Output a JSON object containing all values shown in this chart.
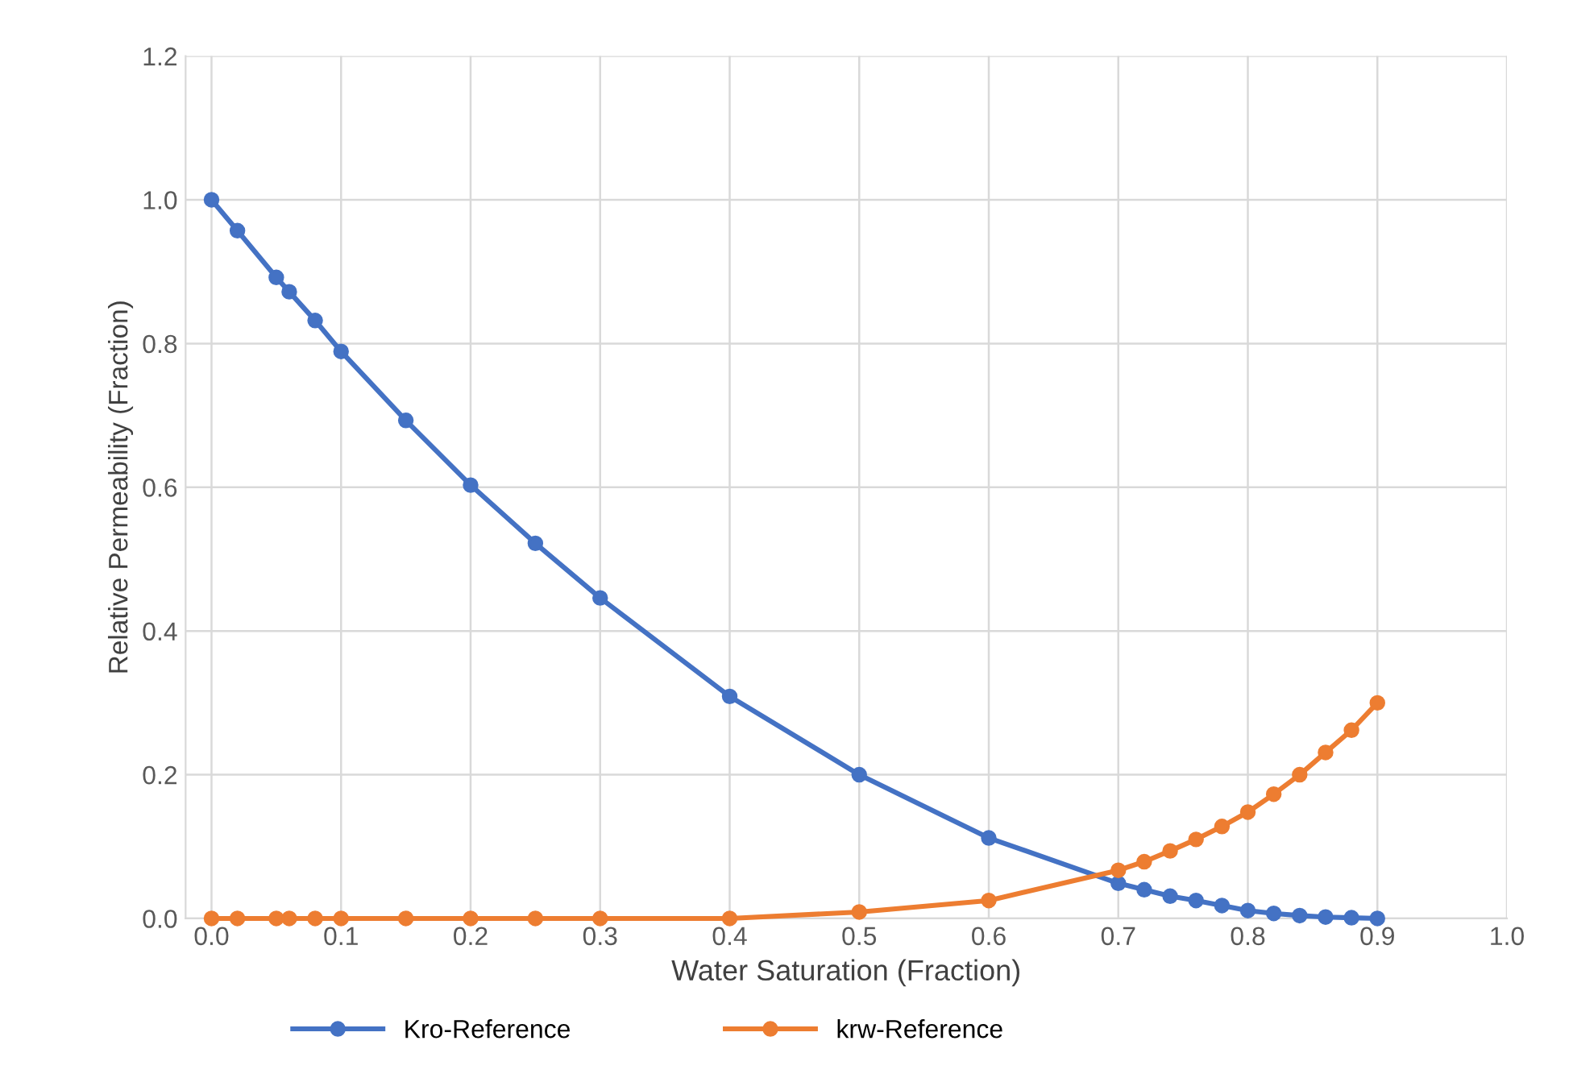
{
  "chart_data": {
    "type": "line",
    "xlabel": "Water Saturation (Fraction)",
    "ylabel": "Relative Permeability (Fraction)",
    "x": [
      0,
      0.02,
      0.05,
      0.06,
      0.08,
      0.1,
      0.15,
      0.2,
      0.25,
      0.3,
      0.4,
      0.5,
      0.6,
      0.7,
      0.72,
      0.74,
      0.76,
      0.78,
      0.8,
      0.82,
      0.84,
      0.86,
      0.88,
      0.9
    ],
    "series": [
      {
        "name": "Kro-Reference",
        "color": "#4472c4",
        "values": [
          1.0,
          0.957,
          0.892,
          0.872,
          0.832,
          0.789,
          0.693,
          0.603,
          0.522,
          0.446,
          0.309,
          0.2,
          0.112,
          0.049,
          0.04,
          0.031,
          0.025,
          0.018,
          0.011,
          0.007,
          0.004,
          0.002,
          0.001,
          0.0
        ]
      },
      {
        "name": "krw-Reference",
        "color": "#ed7d31",
        "values": [
          0,
          0,
          0,
          0,
          0,
          0,
          0,
          0,
          0,
          0,
          0,
          0.009,
          0.025,
          0.067,
          0.079,
          0.094,
          0.11,
          0.128,
          0.148,
          0.173,
          0.2,
          0.231,
          0.262,
          0.3
        ]
      }
    ],
    "xlim": [
      -0.02,
      1.0
    ],
    "xticks": [
      {
        "value": 0,
        "label": "0.0"
      },
      0.1,
      0.2,
      0.3,
      0.4,
      0.5,
      0.6,
      0.7,
      0.8,
      0.9,
      {
        "value": 1.0,
        "label": "1.0"
      }
    ],
    "ylim": [
      0,
      1.2
    ],
    "yticks": [
      {
        "value": 0,
        "label": "0.0"
      },
      0.2,
      0.4,
      0.6,
      0.8,
      {
        "value": 1.0,
        "label": "1.0"
      },
      1.2
    ],
    "grid": true,
    "legend": "bottom",
    "marker": "circle",
    "line_style": "solid"
  }
}
